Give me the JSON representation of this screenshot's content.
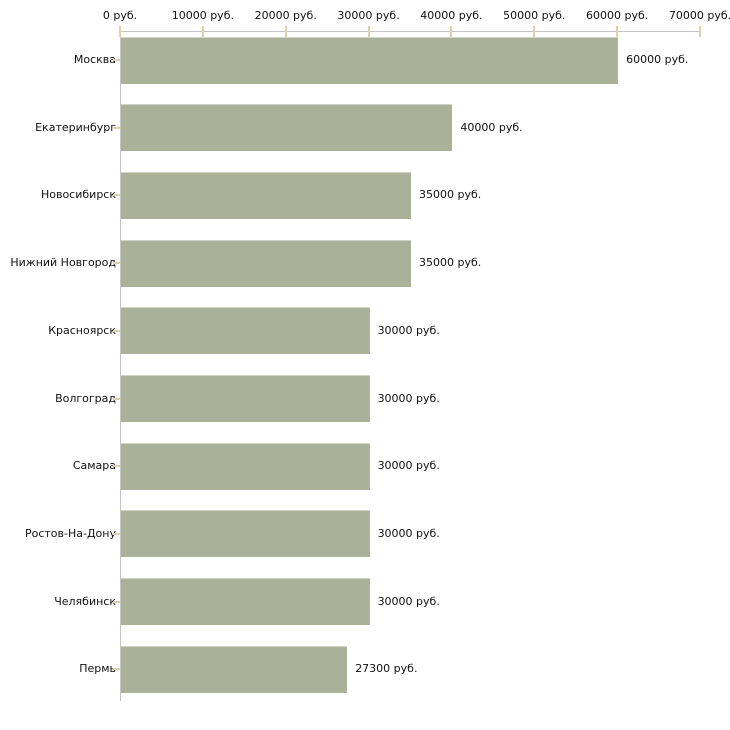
{
  "chart_data": {
    "type": "bar",
    "orientation": "horizontal",
    "title": "",
    "categories": [
      "Москва",
      "Екатеринбург",
      "Новосибирск",
      "Нижний Новгород",
      "Красноярск",
      "Волгоград",
      "Самара",
      "Ростов-На-Дону",
      "Челябинск",
      "Пермь"
    ],
    "values": [
      60000,
      40000,
      35000,
      35000,
      30000,
      30000,
      30000,
      30000,
      30000,
      27300
    ],
    "value_labels": [
      "60000 руб.",
      "40000 руб.",
      "35000 руб.",
      "35000 руб.",
      "30000 руб.",
      "30000 руб.",
      "30000 руб.",
      "30000 руб.",
      "30000 руб.",
      "27300 руб."
    ],
    "unit": "руб.",
    "x_axis": {
      "position": "top",
      "min": 0,
      "max": 70000,
      "ticks": [
        0,
        10000,
        20000,
        30000,
        40000,
        50000,
        60000,
        70000
      ],
      "tick_labels": [
        "0 руб.",
        "10000 руб.",
        "20000 руб.",
        "30000 руб.",
        "40000 руб.",
        "50000 руб.",
        "60000 руб.",
        "70000 руб."
      ]
    },
    "grid": false,
    "legend": false,
    "colors": {
      "bar": "#abb199",
      "axis_line": "#c4c4c4",
      "tick": "#d9d3a7",
      "text": "#111111",
      "background": "#ffffff"
    }
  }
}
